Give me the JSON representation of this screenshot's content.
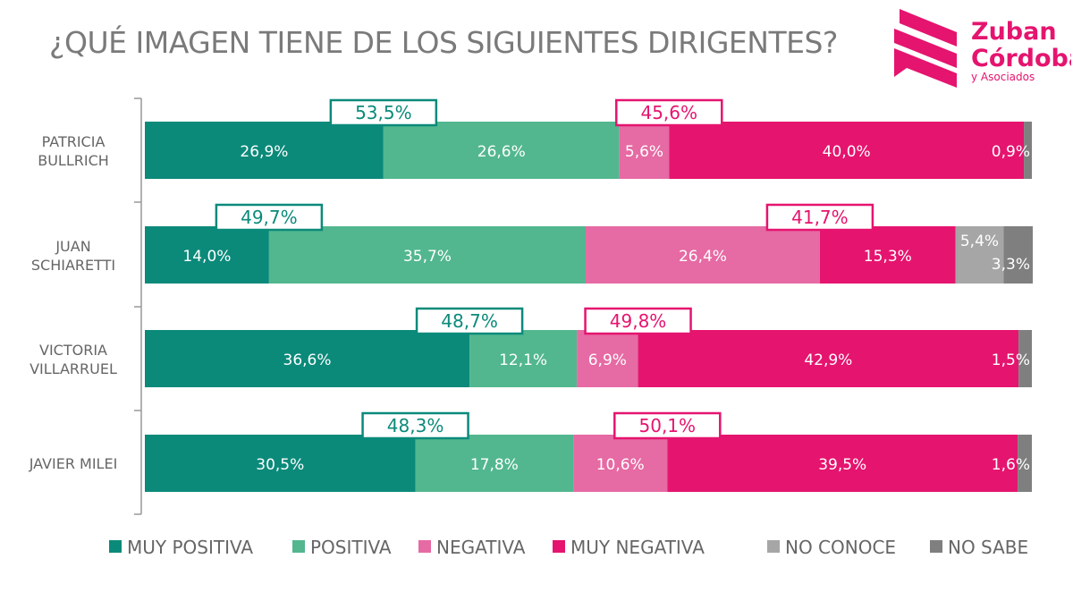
{
  "title": "¿QUÉ IMAGEN TIENE DE LOS SIGUIENTES DIRIGENTES?",
  "logo": {
    "line1": "Zuban",
    "line2": "Córdoba",
    "line3": "y Asociados",
    "color": "#e5146f"
  },
  "chart_data": {
    "type": "bar",
    "orientation": "horizontal",
    "stacked": true,
    "title": "¿QUÉ IMAGEN TIENE DE LOS SIGUIENTES DIRIGENTES?",
    "xlim": [
      0,
      100
    ],
    "legend_position": "bottom",
    "categories": [
      {
        "line1": "PATRICIA",
        "line2": "BULLRICH"
      },
      {
        "line1": "JUAN",
        "line2": "SCHIARETTI"
      },
      {
        "line1": "VICTORIA",
        "line2": "VILLARRUEL"
      },
      {
        "line1": "JAVIER MILEI",
        "line2": ""
      }
    ],
    "series": [
      {
        "name": "MUY POSITIVA",
        "color": "#0b8a7a",
        "values": [
          26.9,
          14.0,
          36.6,
          30.5
        ],
        "labels": [
          "26,9%",
          "14,0%",
          "36,6%",
          "30,5%"
        ]
      },
      {
        "name": "POSITIVA",
        "color": "#52b78f",
        "values": [
          26.6,
          35.7,
          12.1,
          17.8
        ],
        "labels": [
          "26,6%",
          "35,7%",
          "12,1%",
          "17,8%"
        ]
      },
      {
        "name": "NEGATIVA",
        "color": "#e66aa3",
        "values": [
          5.6,
          26.4,
          6.9,
          10.6
        ],
        "labels": [
          "5,6%",
          "26,4%",
          "6,9%",
          "10,6%"
        ]
      },
      {
        "name": "MUY NEGATIVA",
        "color": "#e5146f",
        "values": [
          40.0,
          15.3,
          42.9,
          39.5
        ],
        "labels": [
          "40,0%",
          "15,3%",
          "42,9%",
          "39,5%"
        ]
      },
      {
        "name": "NO CONOCE",
        "color": "#a6a6a6",
        "values": [
          0,
          5.4,
          0,
          0
        ],
        "labels": [
          "",
          "5,4%",
          "",
          ""
        ]
      },
      {
        "name": "NO SABE",
        "color": "#7f7f7f",
        "values": [
          0.9,
          3.3,
          1.5,
          1.6
        ],
        "labels": [
          "0,9%",
          "3,3%",
          "1,5%",
          "1,6%"
        ]
      }
    ],
    "totals": {
      "positive": {
        "color": "#0b8a7a",
        "values": [
          53.5,
          49.7,
          48.7,
          48.3
        ],
        "labels": [
          "53,5%",
          "49,7%",
          "48,7%",
          "48,3%"
        ]
      },
      "negative": {
        "color": "#e5146f",
        "values": [
          45.6,
          41.7,
          49.8,
          50.1
        ],
        "labels": [
          "45,6%",
          "41,7%",
          "49,8%",
          "50,1%"
        ]
      }
    }
  }
}
